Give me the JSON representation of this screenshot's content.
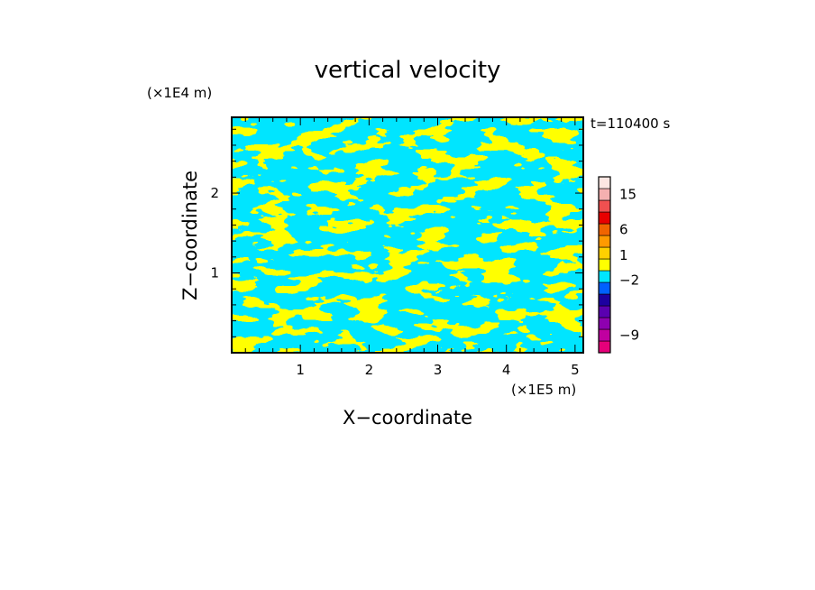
{
  "chart_data": {
    "type": "heatmap",
    "title": "vertical velocity",
    "xlabel": "X−coordinate",
    "ylabel": "Z−coordinate",
    "x_unit": "(×1E5 m)",
    "y_unit": "(×1E4 m)",
    "time_label": "t=110400 s",
    "xlim": [
      0,
      5.12
    ],
    "ylim": [
      0,
      2.95
    ],
    "x_ticks": [
      1,
      2,
      3,
      4,
      5
    ],
    "y_ticks": [
      1,
      2
    ],
    "colors": {
      "positive": "#ffff00",
      "negative": "#00e5ff"
    },
    "colorbar": {
      "levels": [
        {
          "color": "#e6007a"
        },
        {
          "color": "#c000a0"
        },
        {
          "color": "#8e00b0"
        },
        {
          "color": "#5a00b0"
        },
        {
          "color": "#1c00a0"
        },
        {
          "color": "#0060ff"
        },
        {
          "color": "#00e5ff"
        },
        {
          "color": "#ffff00"
        },
        {
          "color": "#ffd000"
        },
        {
          "color": "#ff9a00"
        },
        {
          "color": "#f06400"
        },
        {
          "color": "#e80000"
        },
        {
          "color": "#f05050"
        },
        {
          "color": "#f4b0b0"
        },
        {
          "color": "#fde6e2"
        }
      ],
      "tick_labels": [
        {
          "label": "15",
          "level_edge": 13.5
        },
        {
          "label": "6",
          "level_edge": 10.5
        },
        {
          "label": "1",
          "level_edge": 8.3
        },
        {
          "label": "−2",
          "level_edge": 6.2
        },
        {
          "label": "−9",
          "level_edge": 1.5
        }
      ]
    }
  }
}
